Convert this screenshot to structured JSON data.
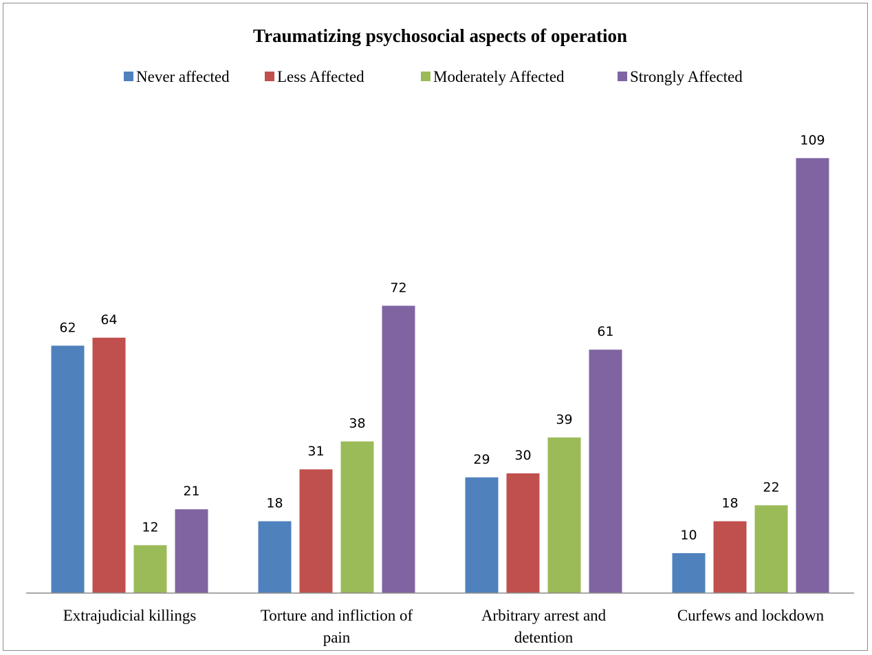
{
  "chart_data": {
    "type": "bar",
    "title": "Traumatizing psychosocial aspects of operation",
    "categories": [
      [
        "Extrajudicial killings"
      ],
      [
        "Torture and infliction of",
        "pain"
      ],
      [
        "Arbitrary arrest and",
        "detention"
      ],
      [
        "Curfews and lockdown"
      ]
    ],
    "series": [
      {
        "name": "Never affected",
        "color": "#4f81bd",
        "values": [
          62,
          18,
          29,
          10
        ]
      },
      {
        "name": "Less Affected",
        "color": "#c0504d",
        "values": [
          64,
          31,
          30,
          18
        ]
      },
      {
        "name": "Moderately Affected",
        "color": "#9bbb59",
        "values": [
          12,
          38,
          39,
          22
        ]
      },
      {
        "name": "Strongly Affected",
        "color": "#8064a2",
        "values": [
          21,
          72,
          61,
          109
        ]
      }
    ],
    "ylim": [
      0,
      125
    ],
    "grid": false,
    "legend": "top",
    "data_labels": true
  }
}
